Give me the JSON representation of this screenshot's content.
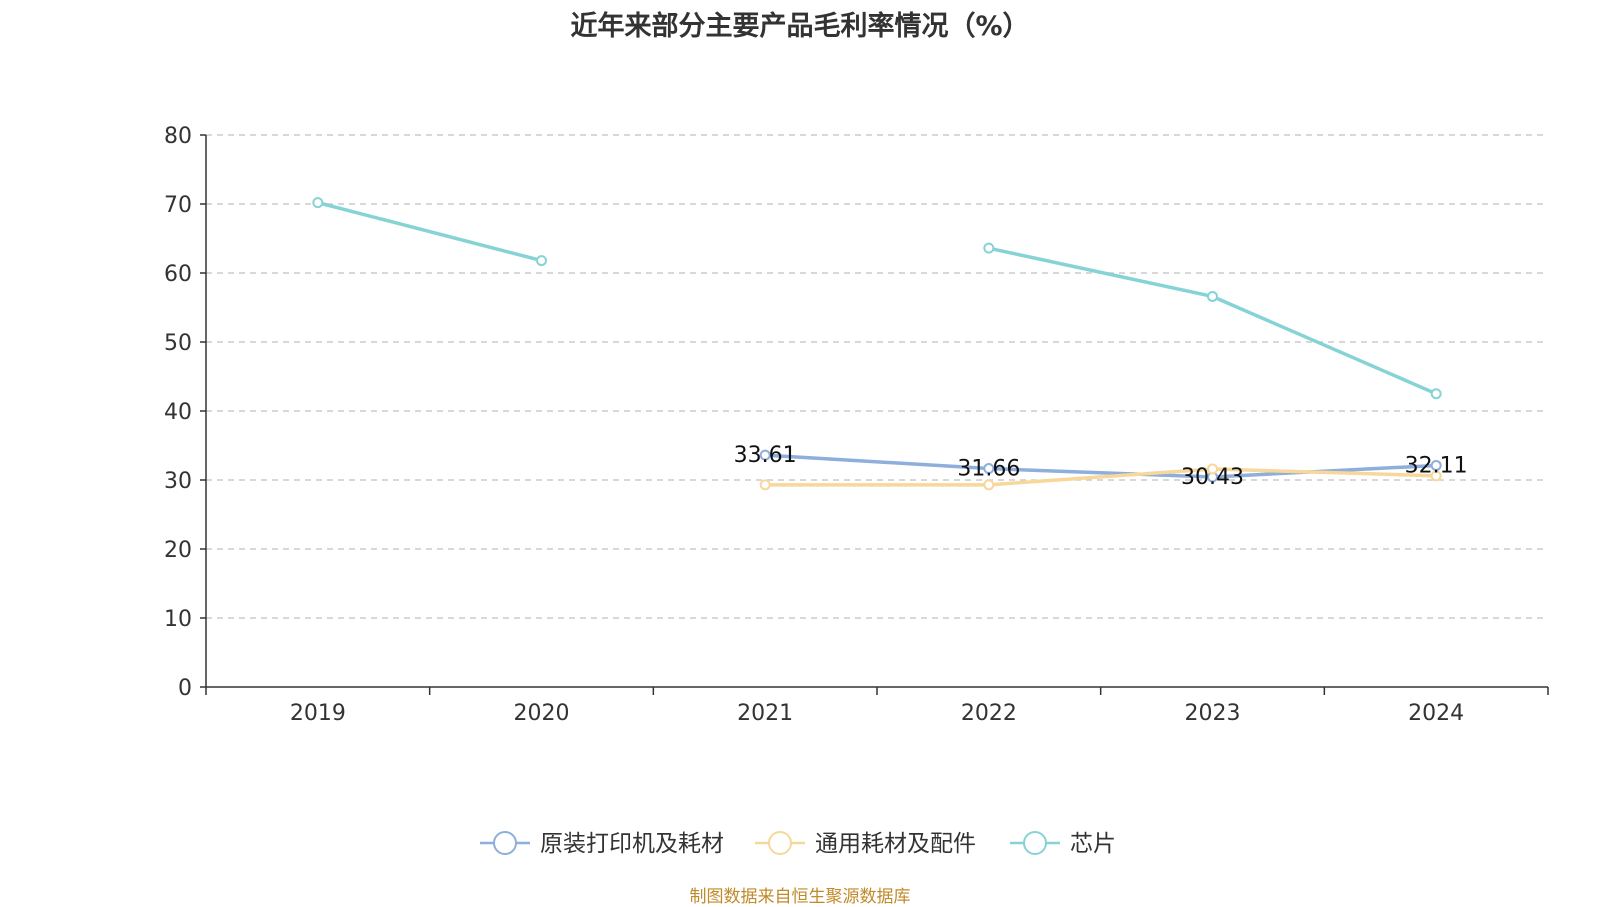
{
  "chart_data": {
    "type": "line",
    "title": "近年来部分主要产品毛利率情况（%）",
    "categories": [
      "2019",
      "2020",
      "2021",
      "2022",
      "2023",
      "2024"
    ],
    "ylim": [
      0,
      80
    ],
    "yticks": [
      0,
      10,
      20,
      30,
      40,
      50,
      60,
      70,
      80
    ],
    "grid": true,
    "legend_position": "bottom",
    "series": [
      {
        "name": "原装打印机及耗材",
        "color": "#8eaedb",
        "values": [
          null,
          null,
          33.61,
          31.66,
          30.43,
          32.11
        ],
        "labels": [
          "",
          "",
          "33.61",
          "31.66",
          "30.43",
          "32.11"
        ]
      },
      {
        "name": "通用耗材及配件",
        "color": "#f8d89a",
        "values": [
          null,
          null,
          29.3,
          29.3,
          31.6,
          30.6
        ],
        "labels": [
          "",
          "",
          "",
          "",
          "",
          ""
        ]
      },
      {
        "name": "芯片",
        "color": "#86d3d6",
        "values": [
          70.2,
          61.8,
          null,
          63.6,
          56.6,
          42.5
        ],
        "labels": [
          "",
          "",
          "",
          "",
          "",
          ""
        ]
      }
    ]
  },
  "footer": {
    "source": "制图数据来自恒生聚源数据库"
  }
}
